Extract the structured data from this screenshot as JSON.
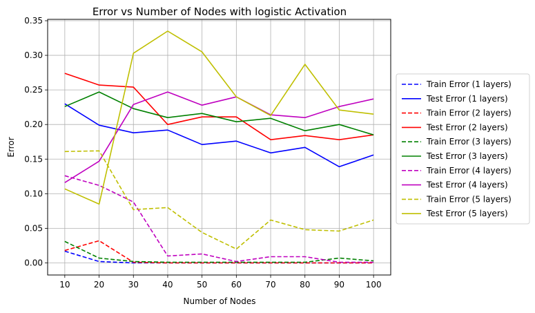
{
  "chart_data": {
    "type": "line",
    "title": "Error vs Number of Nodes with logistic Activation",
    "xlabel": "Number of Nodes",
    "ylabel": "Error",
    "x": [
      10,
      20,
      30,
      40,
      50,
      60,
      70,
      80,
      90,
      100
    ],
    "xlim": [
      5,
      105
    ],
    "ylim": [
      -0.0175,
      0.352
    ],
    "xticks": [
      "10",
      "20",
      "30",
      "40",
      "50",
      "60",
      "70",
      "80",
      "90",
      "100"
    ],
    "yticks": [
      "0.00",
      "0.05",
      "0.10",
      "0.15",
      "0.20",
      "0.25",
      "0.30",
      "0.35"
    ],
    "grid": true,
    "legend_position": "outside right",
    "series": [
      {
        "name": "Train Error (1 layers)",
        "color": "#0000ff",
        "style": "dashed",
        "values": [
          0.017,
          0.002,
          0.0,
          0.0,
          0.0,
          0.0,
          0.0,
          0.0,
          0.0,
          0.0
        ]
      },
      {
        "name": "Test Error (1 layers)",
        "color": "#0000ff",
        "style": "solid",
        "values": [
          0.23,
          0.199,
          0.188,
          0.192,
          0.171,
          0.176,
          0.159,
          0.167,
          0.139,
          0.156
        ]
      },
      {
        "name": "Train Error (2 layers)",
        "color": "#ff0000",
        "style": "dashed",
        "values": [
          0.018,
          0.032,
          0.001,
          0.0,
          0.0,
          0.0,
          0.0,
          0.0,
          0.0,
          0.0
        ]
      },
      {
        "name": "Test Error (2 layers)",
        "color": "#ff0000",
        "style": "solid",
        "values": [
          0.274,
          0.257,
          0.254,
          0.2,
          0.211,
          0.211,
          0.178,
          0.184,
          0.178,
          0.185
        ]
      },
      {
        "name": "Train Error (3 layers)",
        "color": "#008000",
        "style": "dashed",
        "values": [
          0.031,
          0.007,
          0.002,
          0.001,
          0.001,
          0.001,
          0.001,
          0.001,
          0.007,
          0.003
        ]
      },
      {
        "name": "Test Error (3 layers)",
        "color": "#008000",
        "style": "solid",
        "values": [
          0.226,
          0.247,
          0.223,
          0.21,
          0.216,
          0.204,
          0.209,
          0.191,
          0.2,
          0.185
        ]
      },
      {
        "name": "Train Error (4 layers)",
        "color": "#bf00bf",
        "style": "dashed",
        "values": [
          0.126,
          0.112,
          0.088,
          0.01,
          0.013,
          0.002,
          0.009,
          0.009,
          0.001,
          0.001
        ]
      },
      {
        "name": "Test Error (4 layers)",
        "color": "#bf00bf",
        "style": "solid",
        "values": [
          0.116,
          0.147,
          0.229,
          0.247,
          0.228,
          0.24,
          0.214,
          0.21,
          0.226,
          0.237
        ]
      },
      {
        "name": "Train Error (5 layers)",
        "color": "#bfbf00",
        "style": "dashed",
        "values": [
          0.161,
          0.162,
          0.077,
          0.08,
          0.044,
          0.02,
          0.062,
          0.048,
          0.046,
          0.062
        ]
      },
      {
        "name": "Test Error (5 layers)",
        "color": "#bfbf00",
        "style": "solid",
        "values": [
          0.107,
          0.085,
          0.303,
          0.335,
          0.305,
          0.24,
          0.213,
          0.287,
          0.221,
          0.215
        ]
      }
    ]
  }
}
